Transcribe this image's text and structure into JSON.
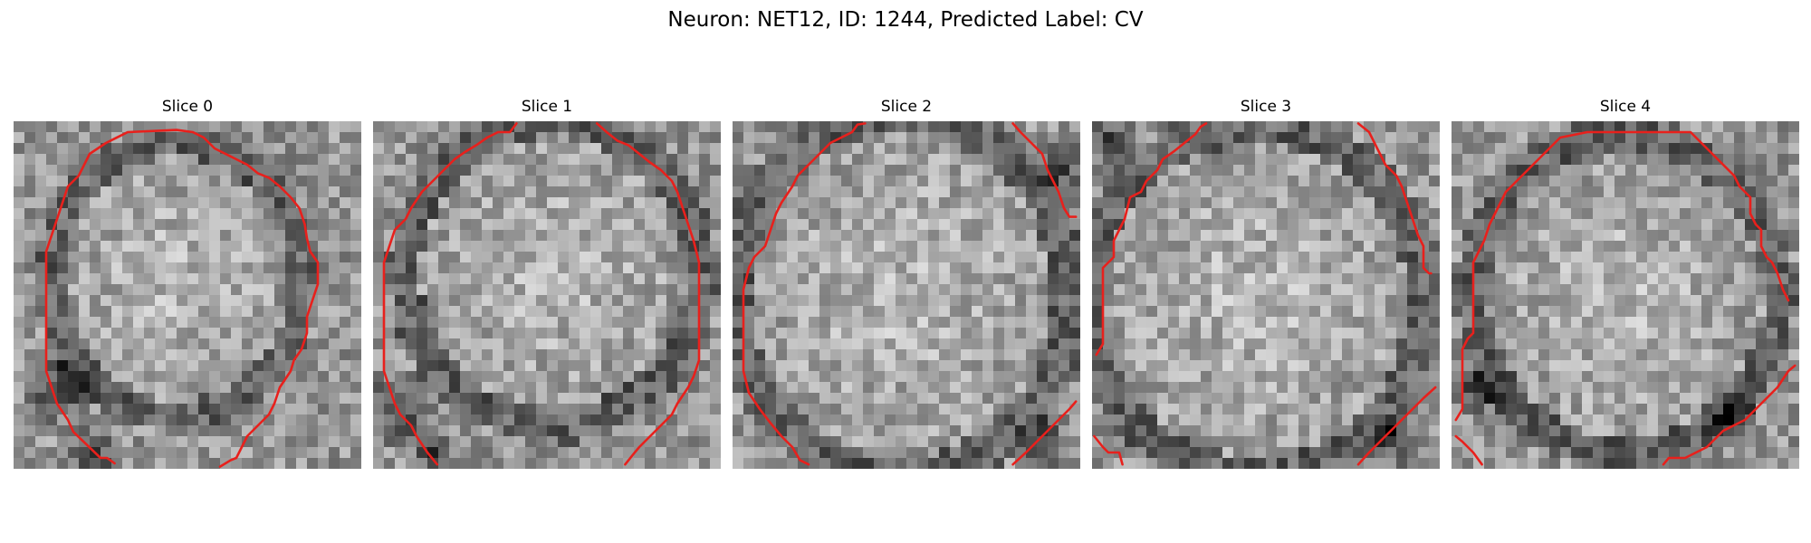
{
  "figure": {
    "title": "Neuron: NET12, ID: 1244, Predicted Label: CV"
  },
  "slices": [
    {
      "label": "Slice 0",
      "texture_seed": 11
    },
    {
      "label": "Slice 1",
      "texture_seed": 23
    },
    {
      "label": "Slice 2",
      "texture_seed": 37
    },
    {
      "label": "Slice 3",
      "texture_seed": 41
    },
    {
      "label": "Slice 4",
      "texture_seed": 59
    }
  ],
  "contour_color": "#e8201c",
  "colormap": "grayscale"
}
